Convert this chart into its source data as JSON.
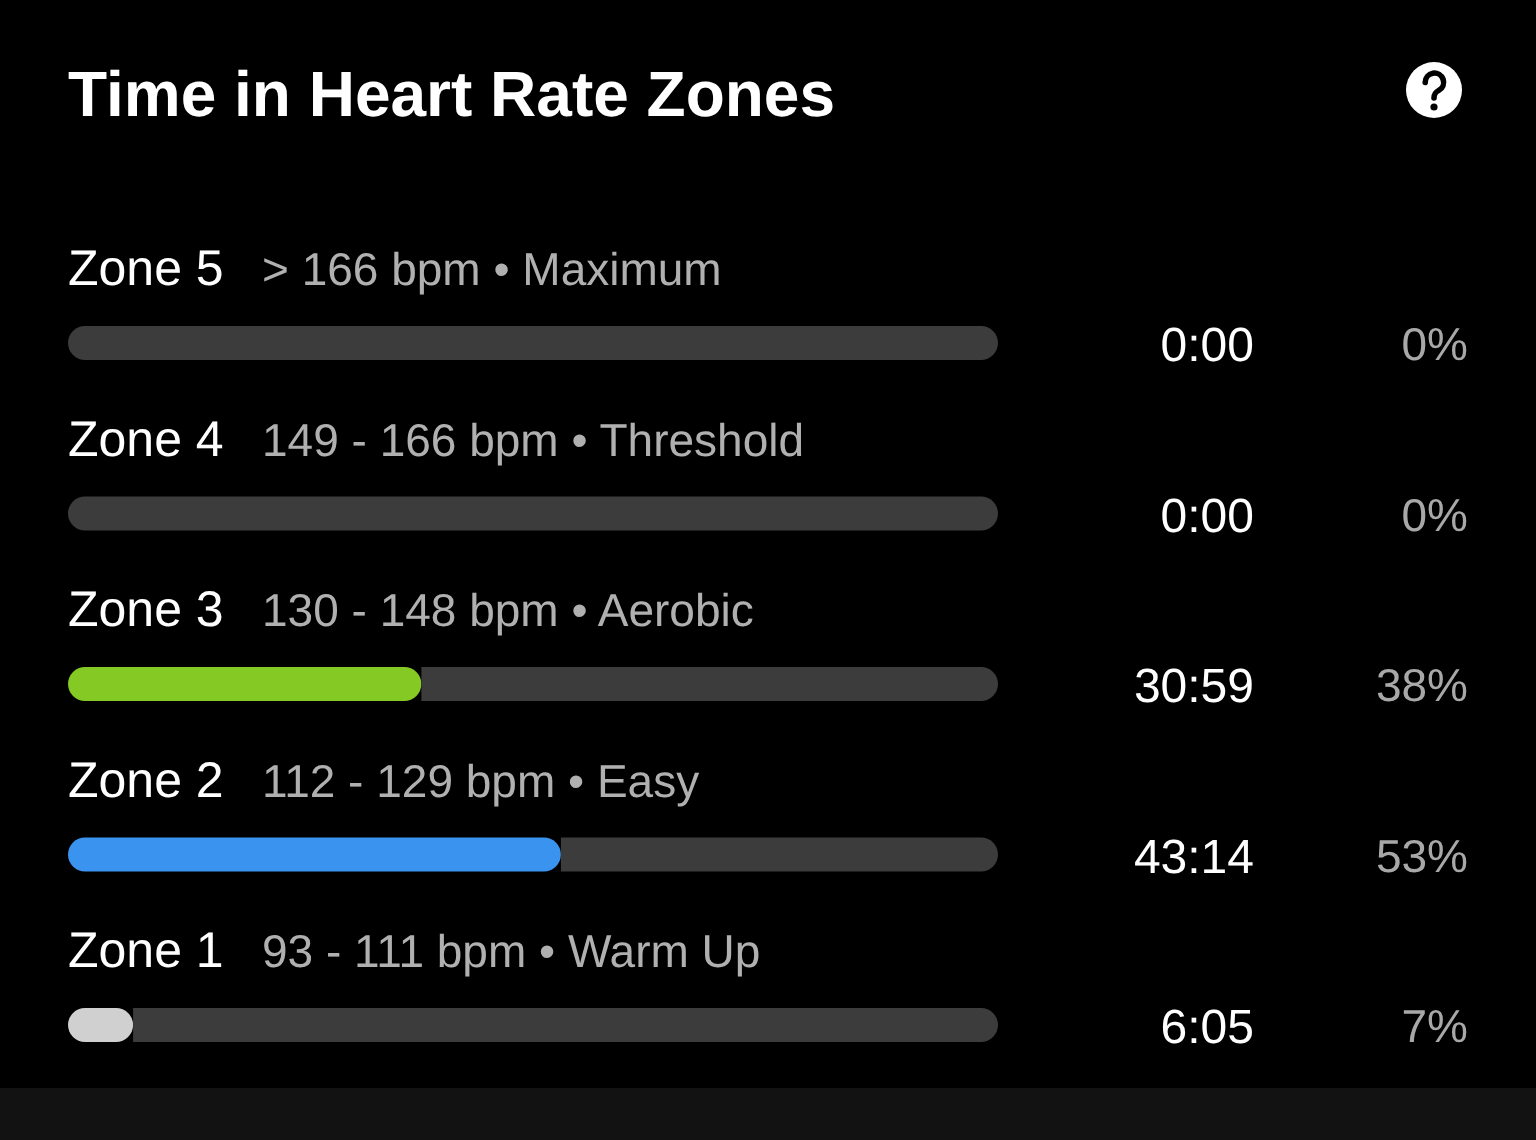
{
  "chart_data": {
    "type": "bar",
    "orientation": "horizontal",
    "stacked": true,
    "title": "Time in Heart Rate Zones",
    "categories": [
      "Zone 5",
      "Zone 4",
      "Zone 3",
      "Zone 2",
      "Zone 1"
    ],
    "series": [
      {
        "colors": [
          null,
          null,
          "#85c924",
          "#3b93f0",
          "#d0d0d0"
        ],
        "values": [
          0,
          0,
          38,
          53,
          7
        ],
        "value_labels": [
          "0%",
          "0%",
          "38%",
          "53%",
          "7%"
        ]
      },
      {
        "color": "#3c3c3c",
        "values": [
          100,
          100,
          62,
          47,
          93
        ]
      }
    ],
    "xlim": [
      0,
      100
    ],
    "tick_labels": "y",
    "annotations": [
      "> 166 bpm • Maximum",
      "149 - 166 bpm • Threshold",
      "130 - 148 bpm • Aerobic",
      "112 - 129 bpm • Easy",
      "93 - 111 bpm • Warm Up",
      "0:00",
      "0:00",
      "30:59",
      "43:14",
      "6:05"
    ]
  }
}
